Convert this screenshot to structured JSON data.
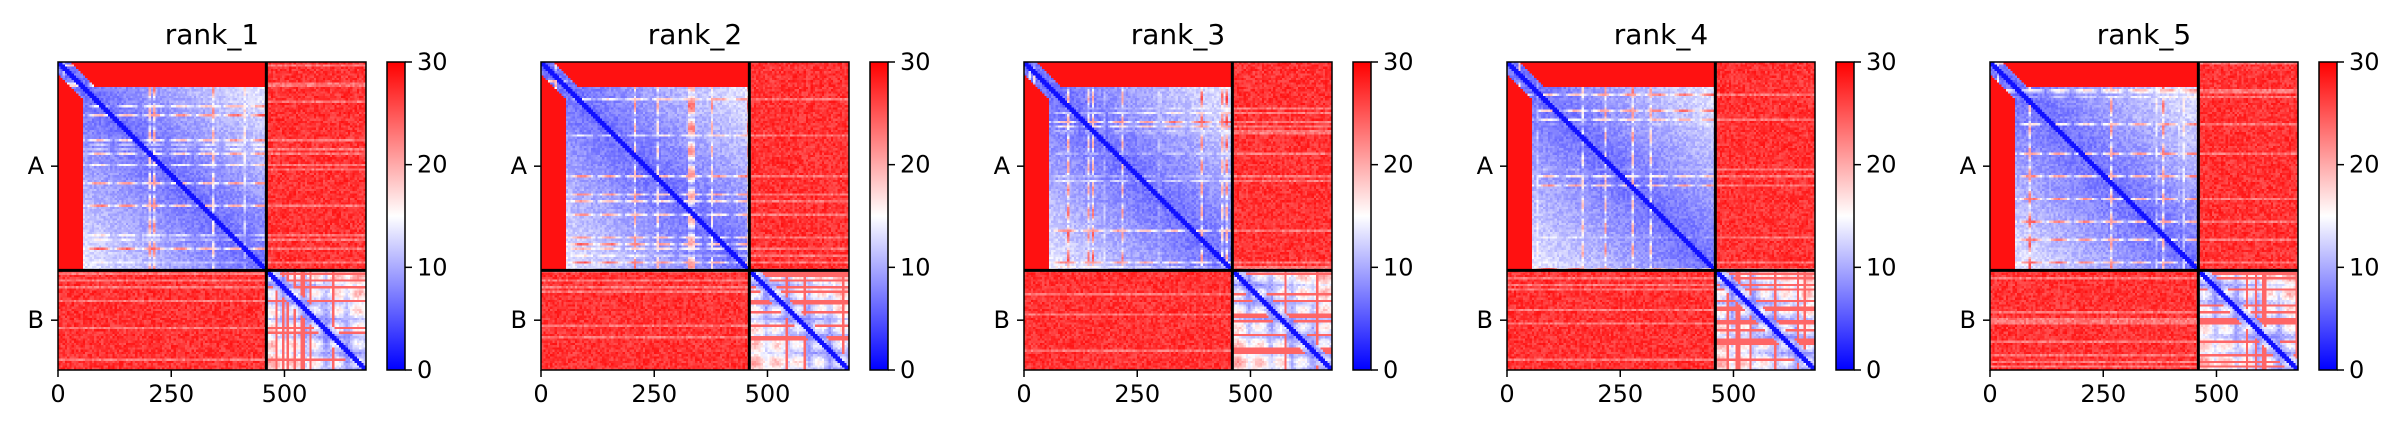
{
  "chart_data": {
    "type": "heatmap",
    "colormap": "bwr",
    "colors": {
      "low": "#0000ff",
      "mid": "#ffffff",
      "high": "#ff0000",
      "boundary": "#000000"
    },
    "color_range": [
      0,
      30
    ],
    "colorbar_ticks": [
      "0",
      "10",
      "20",
      "30"
    ],
    "x_range": [
      0,
      680
    ],
    "x_ticks": [
      0,
      250,
      500
    ],
    "x_tick_labels": [
      "0",
      "250",
      "500"
    ],
    "chain_boundary": 460,
    "chain_labels": [
      "A",
      "B"
    ],
    "legend": "colorbar-right",
    "grid": false,
    "panels": [
      {
        "title": "rank_1"
      },
      {
        "title": "rank_2"
      },
      {
        "title": "rank_3"
      },
      {
        "title": "rank_4"
      },
      {
        "title": "rank_5"
      }
    ]
  }
}
